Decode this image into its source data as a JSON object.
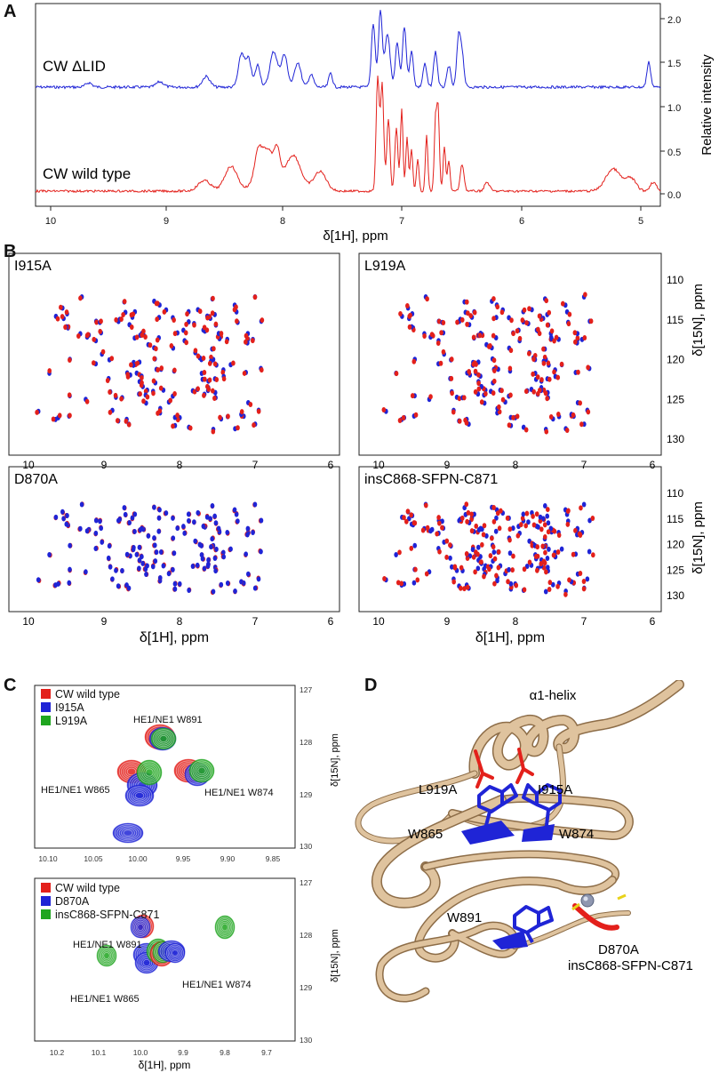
{
  "panels": {
    "a": {
      "label": "A",
      "traces": [
        {
          "label": "CW ΔLID",
          "color": "#1f24d6"
        },
        {
          "label": "CW wild type",
          "color": "#e3201b"
        }
      ],
      "xlabel": "δ[1H], ppm",
      "ylabel": "Relative intensity",
      "xticks": [
        "10",
        "9",
        "8",
        "7",
        "6",
        "5"
      ],
      "yticks": [
        "0.0",
        "0.5",
        "1.0",
        "1.5",
        "2.0"
      ]
    },
    "b": {
      "label": "B",
      "spectra": [
        {
          "title": "I915A"
        },
        {
          "title": "L919A"
        },
        {
          "title": "D870A"
        },
        {
          "title": "insC868-SFPN-C871"
        }
      ],
      "xlabel": "δ[1H], ppm",
      "ylabel": "δ[15N], ppm",
      "xticks": [
        "10",
        "9",
        "8",
        "7",
        "6"
      ],
      "yticks": [
        "110",
        "115",
        "120",
        "125",
        "130"
      ]
    },
    "c": {
      "label": "C",
      "top": {
        "legend": [
          {
            "label": "CW wild type",
            "color": "#e3201b"
          },
          {
            "label": "I915A",
            "color": "#1f24d6"
          },
          {
            "label": "L919A",
            "color": "#1fa51f"
          }
        ],
        "annotations": [
          "HE1/NE1 W891",
          "HE1/NE1 W865",
          "HE1/NE1 W874"
        ],
        "xticks": [
          "10.10",
          "10.05",
          "10.00",
          "9.95",
          "9.90",
          "9.85"
        ],
        "yticks": [
          "127",
          "128",
          "129",
          "130"
        ]
      },
      "bottom": {
        "legend": [
          {
            "label": "CW wild type",
            "color": "#e3201b"
          },
          {
            "label": "D870A",
            "color": "#1f24d6"
          },
          {
            "label": "insC868-SFPN-C871",
            "color": "#1fa51f"
          }
        ],
        "annotations": [
          "HE1/NE1 W891",
          "HE1/NE1 W865",
          "HE1/NE1 W874"
        ],
        "xticks": [
          "10.2",
          "10.1",
          "10.0",
          "9.9",
          "9.8",
          "9.7"
        ],
        "yticks": [
          "127",
          "128",
          "129",
          "130"
        ]
      },
      "xlabel": "δ[1H], ppm",
      "ylabel": "δ[15N], ppm"
    },
    "d": {
      "label": "D",
      "labels": [
        "α1-helix",
        "L919A",
        "I915A",
        "W865",
        "W874",
        "W891",
        "D870A",
        "insC868-SFPN-C871"
      ]
    }
  },
  "colors": {
    "red": "#e3201b",
    "blue": "#1f24d6",
    "green": "#1fa51f",
    "tan": "#d9bd96"
  }
}
